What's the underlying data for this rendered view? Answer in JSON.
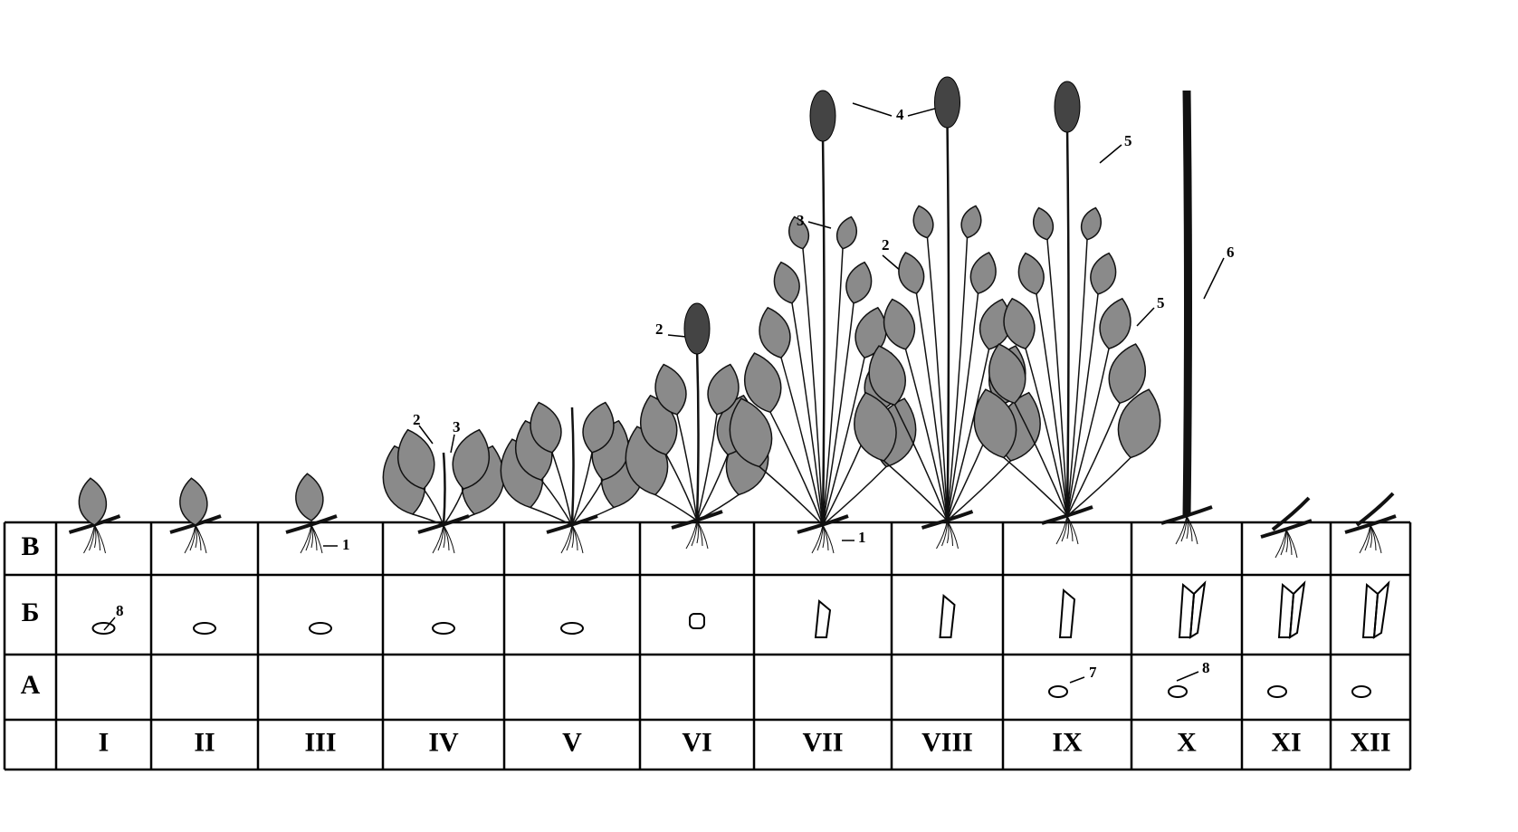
{
  "table": {
    "row_labels": [
      "В",
      "Б",
      "А"
    ],
    "columns": [
      "I",
      "II",
      "III",
      "IV",
      "V",
      "VI",
      "VII",
      "VIII",
      "IX",
      "X",
      "XI",
      "XII"
    ]
  },
  "annotations": [
    "8",
    "1",
    "2",
    "3",
    "2",
    "4",
    "3",
    "2",
    "1",
    "5",
    "5",
    "6",
    "7",
    "8"
  ]
}
